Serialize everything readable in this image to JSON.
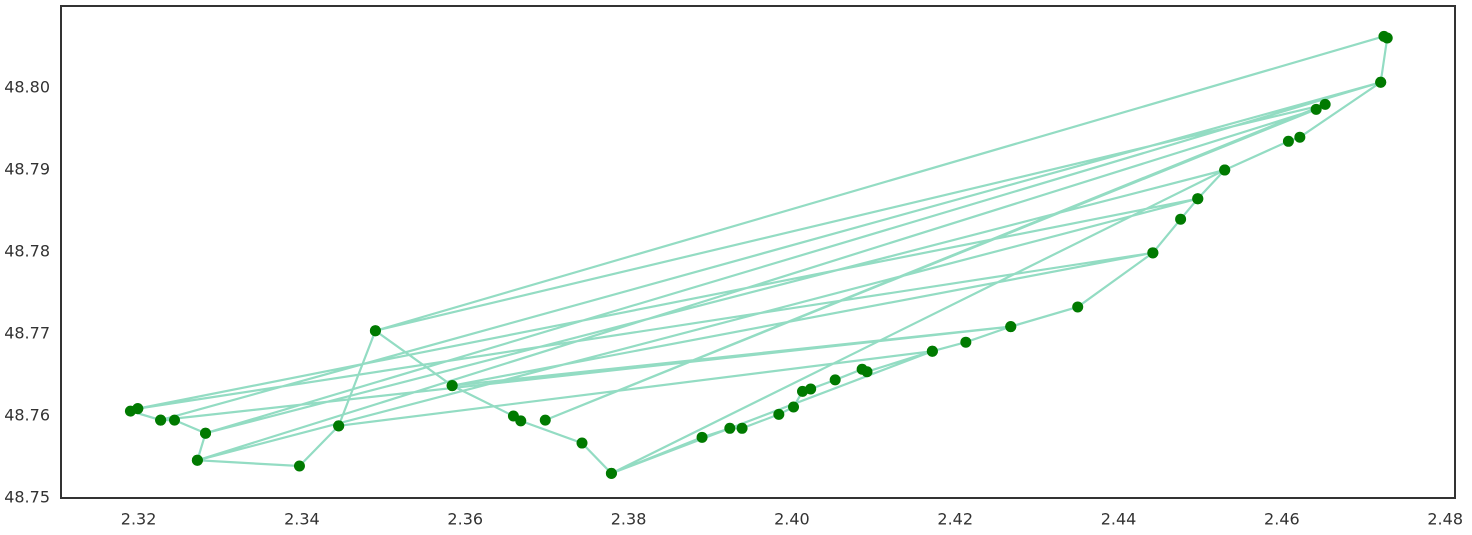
{
  "chart_data": {
    "type": "line",
    "series": [
      {
        "line_color": "#93dcc3",
        "marker_color": "#007a00",
        "x": [
          2.3199,
          2.319,
          2.3227,
          2.3244,
          2.3282,
          2.3272,
          2.3397,
          2.3445,
          2.349,
          2.3584,
          2.3659,
          2.3668,
          2.3743,
          2.3779,
          2.389,
          2.3924,
          2.3939,
          2.3984,
          2.4002,
          2.4013,
          2.4023,
          2.4053,
          2.4086,
          2.4092,
          2.4172,
          2.4213,
          2.4268,
          2.435,
          2.4442,
          2.4476,
          2.4497,
          2.453,
          2.4608,
          2.4622,
          2.4721,
          2.4729,
          2.4725,
          2.349,
          2.4653,
          2.3698,
          2.4642,
          2.3272,
          2.4497,
          2.3199,
          2.4442,
          2.3584,
          2.4268,
          2.3227,
          2.4721,
          2.3282,
          2.453,
          2.3779,
          2.4172,
          2.3445
        ],
        "y": [
          48.7609,
          48.7606,
          48.7595,
          48.7595,
          48.7579,
          48.7546,
          48.7539,
          48.7588,
          48.7704,
          48.7637,
          48.76,
          48.7594,
          48.7567,
          48.753,
          48.7574,
          48.7585,
          48.7585,
          48.7602,
          48.7611,
          48.763,
          48.7633,
          48.7644,
          48.7657,
          48.7654,
          48.7679,
          48.769,
          48.7709,
          48.7733,
          48.7799,
          48.784,
          48.7865,
          48.79,
          48.7935,
          48.794,
          48.8007,
          48.8061,
          48.8063,
          48.7704,
          48.798,
          48.7595,
          48.7974,
          48.7546,
          48.7865,
          48.7609,
          48.7799,
          48.7637,
          48.7709,
          48.7595,
          48.8007,
          48.7579,
          48.79,
          48.753,
          48.7679,
          48.7588
        ]
      }
    ],
    "xlim": [
      2.3105,
      2.4812
    ],
    "ylim": [
      48.75,
      48.81
    ],
    "xticks": [
      2.32,
      2.34,
      2.36,
      2.38,
      {
        "value": 2.4,
        "label": "2.40"
      },
      2.42,
      2.44,
      2.46,
      2.48
    ],
    "yticks": [
      48.75,
      48.76,
      48.77,
      48.78,
      48.79,
      {
        "value": 48.8,
        "label": "48.80"
      }
    ],
    "grid": false
  }
}
